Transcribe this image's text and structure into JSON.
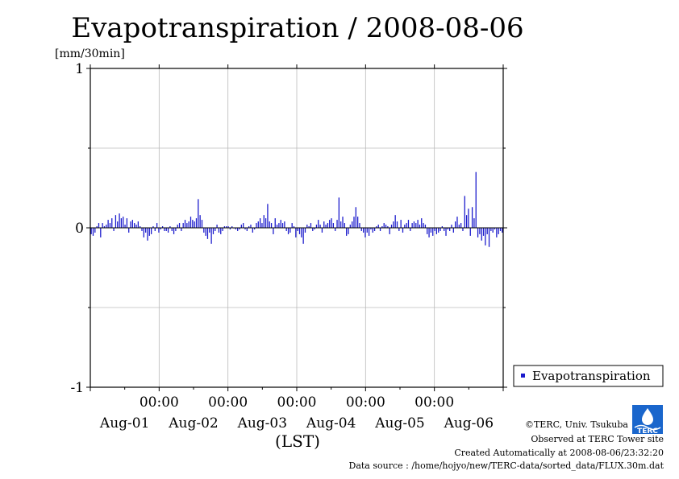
{
  "chart_data": {
    "type": "bar",
    "title": "Evapotranspiration / 2008-08-06",
    "ylabel": "[mm/30min]",
    "xlabel": "(LST)",
    "ylim": [
      -1,
      1
    ],
    "yticks": [
      "1",
      "0",
      "-1"
    ],
    "xlim_days": [
      0,
      6
    ],
    "x_tick_labels": [
      "00:00",
      "00:00",
      "00:00",
      "00:00",
      "00:00"
    ],
    "date_labels": [
      "Aug-01",
      "Aug-02",
      "Aug-03",
      "Aug-04",
      "Aug-05",
      "Aug-06"
    ],
    "grid": true,
    "legend_position": "bottom-right outside",
    "series": [
      {
        "name": "Evapotranspiration",
        "color": "#1a1acc",
        "values": [
          -0.04,
          -0.05,
          -0.03,
          0.01,
          0.03,
          -0.06,
          0.03,
          0.01,
          0.02,
          0.05,
          0.03,
          0.06,
          -0.02,
          0.08,
          0.04,
          0.09,
          0.06,
          0.07,
          0.02,
          0.06,
          -0.03,
          0.04,
          0.05,
          0.03,
          0.02,
          0.04,
          0.01,
          -0.02,
          -0.06,
          -0.03,
          -0.08,
          -0.05,
          -0.04,
          0.01,
          -0.02,
          0.03,
          -0.03,
          -0.01,
          0.01,
          -0.02,
          -0.02,
          -0.03,
          0.01,
          -0.02,
          -0.04,
          -0.02,
          0.02,
          0.03,
          -0.02,
          0.03,
          0.05,
          0.03,
          0.04,
          0.07,
          0.05,
          0.04,
          0.06,
          0.18,
          0.08,
          0.05,
          -0.03,
          -0.05,
          -0.07,
          -0.03,
          -0.1,
          -0.04,
          -0.02,
          0.02,
          -0.03,
          -0.04,
          -0.02,
          0.01,
          0.01,
          0.01,
          -0.01,
          0.01,
          0.0,
          -0.01,
          -0.02,
          -0.01,
          0.02,
          0.03,
          -0.01,
          -0.02,
          0.01,
          0.02,
          -0.03,
          -0.01,
          0.03,
          0.04,
          0.06,
          0.03,
          0.08,
          0.06,
          0.15,
          0.04,
          0.03,
          -0.04,
          0.06,
          0.02,
          0.03,
          0.05,
          0.03,
          0.04,
          -0.02,
          -0.04,
          -0.03,
          0.03,
          0.01,
          -0.06,
          -0.02,
          -0.04,
          -0.06,
          -0.1,
          -0.03,
          0.02,
          0.01,
          0.03,
          -0.02,
          -0.01,
          0.02,
          0.05,
          0.02,
          -0.03,
          0.04,
          0.02,
          0.03,
          0.05,
          0.06,
          0.03,
          -0.02,
          0.05,
          0.19,
          0.04,
          0.07,
          0.03,
          -0.05,
          -0.04,
          0.02,
          0.04,
          0.07,
          0.13,
          0.07,
          0.03,
          -0.02,
          -0.03,
          -0.06,
          -0.03,
          -0.05,
          -0.01,
          -0.03,
          -0.02,
          0.01,
          0.02,
          -0.02,
          0.01,
          0.03,
          0.02,
          0.01,
          -0.04,
          0.02,
          0.04,
          0.08,
          0.04,
          -0.02,
          0.05,
          -0.03,
          0.02,
          0.03,
          0.05,
          -0.02,
          0.03,
          0.04,
          0.03,
          0.05,
          0.02,
          0.06,
          0.03,
          0.02,
          -0.04,
          -0.06,
          -0.03,
          -0.05,
          -0.02,
          -0.04,
          -0.03,
          -0.02,
          0.01,
          -0.02,
          -0.05,
          -0.01,
          -0.02,
          0.02,
          -0.03,
          0.04,
          0.07,
          0.02,
          0.03,
          -0.02,
          0.2,
          0.08,
          0.12,
          -0.05,
          0.13,
          0.06,
          0.35,
          -0.06,
          -0.04,
          -0.08,
          -0.05,
          -0.11,
          -0.04,
          -0.12,
          -0.02,
          -0.03,
          -0.01,
          -0.06,
          -0.04,
          -0.02,
          -0.03
        ]
      }
    ]
  },
  "credits": {
    "copyright": "©TERC, Univ. Tsukuba",
    "observed": "Observed at TERC Tower site",
    "created": "Created Automatically at 2008-08-06/23:32:20",
    "source": "Data source : /home/hojyo/new/TERC-data/sorted_data/FLUX.30m.dat"
  },
  "logo": {
    "text": "TERC",
    "color": "#1a66cc"
  }
}
